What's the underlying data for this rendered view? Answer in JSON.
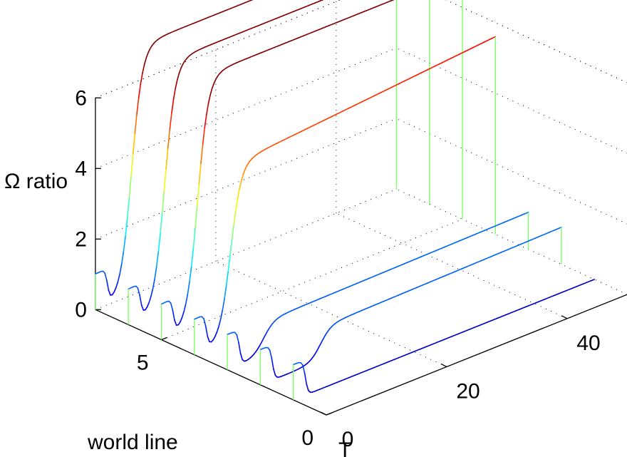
{
  "chart_data": {
    "type": "line",
    "subtype": "3d-waterfall",
    "title": "",
    "xlabel": "T",
    "ylabel": "world line",
    "zlabel": "Ω ratio",
    "xlim": [
      0,
      50
    ],
    "ylim": [
      0,
      7
    ],
    "zlim": [
      0,
      6
    ],
    "xticks": [
      "0",
      "20",
      "40"
    ],
    "yticks": [
      "0",
      "5"
    ],
    "zticks": [
      "0",
      "2",
      "4",
      "6"
    ],
    "grid": true,
    "colormap": "jet",
    "series": [
      {
        "world_line": 7,
        "step_T": 2,
        "high": 1.0,
        "low": 0.0,
        "rise_T": 6,
        "plateau": 7.0,
        "final": 7.0
      },
      {
        "world_line": 6,
        "step_T": 2,
        "high": 1.0,
        "low": 0.0,
        "rise_T": 6,
        "plateau": 7.0,
        "final": 7.0
      },
      {
        "world_line": 5,
        "step_T": 2,
        "high": 1.0,
        "low": 0.0,
        "rise_T": 6,
        "plateau": 7.0,
        "final": 7.0
      },
      {
        "world_line": 4,
        "step_T": 2,
        "high": 1.0,
        "low": 0.0,
        "rise_T": 6,
        "plateau": 5.0,
        "final": 5.6
      },
      {
        "world_line": 3,
        "step_T": 2,
        "high": 1.0,
        "low": 0.0,
        "rise_T": 6,
        "plateau": 0.95,
        "final": 1.05
      },
      {
        "world_line": 2,
        "step_T": 2,
        "high": 1.0,
        "low": 0.0,
        "rise_T": 10,
        "plateau": 0.95,
        "final": 1.05
      },
      {
        "world_line": 1,
        "step_T": 2,
        "high": 1.0,
        "low": 0.0,
        "rise_T": 99,
        "plateau": 0.0,
        "final": 0.0
      }
    ]
  }
}
